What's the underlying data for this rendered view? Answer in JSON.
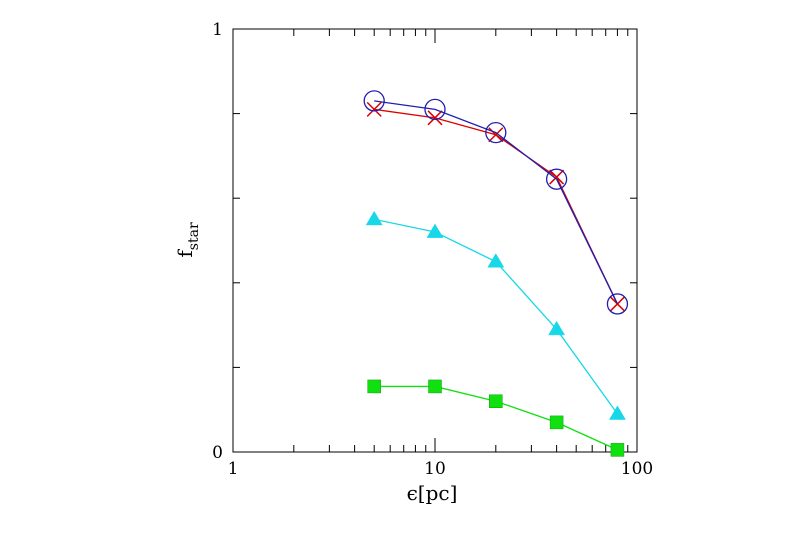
{
  "chart_data": {
    "type": "line",
    "title": "",
    "xlabel": "ϵ[pc]",
    "ylabel": {
      "main": "f",
      "sub": "star"
    },
    "x_scale": "log",
    "xlim": [
      1,
      100
    ],
    "ylim": [
      0,
      1
    ],
    "x_ticks": [
      {
        "value": 1,
        "label": "1"
      },
      {
        "value": 10,
        "label": "10"
      },
      {
        "value": 100,
        "label": "100"
      }
    ],
    "y_ticks": [
      {
        "value": 0,
        "label": "0"
      },
      {
        "value": 1,
        "label": "1"
      }
    ],
    "y_minor_step": 0.2,
    "grid": false,
    "legend": "none",
    "x": [
      5,
      10,
      20,
      40,
      80
    ],
    "series": [
      {
        "marker": "x",
        "color": "#dd0000",
        "values": [
          0.81,
          0.79,
          0.75,
          0.65,
          0.35
        ]
      },
      {
        "marker": "open-circle",
        "color": "#2020b0",
        "values": [
          0.83,
          0.81,
          0.755,
          0.645,
          0.35
        ]
      },
      {
        "marker": "filled-triangle",
        "color": "#18d8e8",
        "values": [
          0.55,
          0.52,
          0.45,
          0.29,
          0.09
        ]
      },
      {
        "marker": "filled-square",
        "color": "#10e010",
        "values": [
          0.155,
          0.155,
          0.12,
          0.07,
          0.005
        ]
      }
    ]
  }
}
